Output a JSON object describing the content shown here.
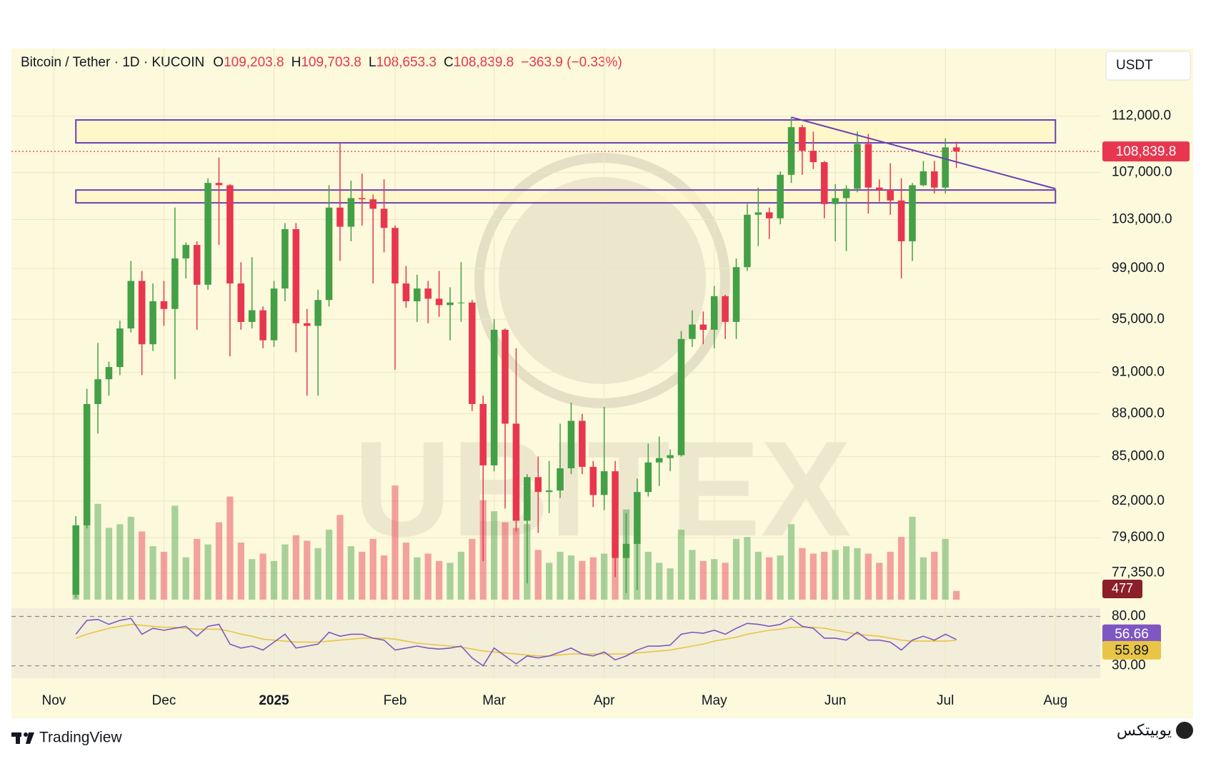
{
  "chart_data": {
    "type": "candlestick",
    "title": "Bitcoin / Tether · 1D · KUCOIN",
    "header_values": [
      {
        "label": "O",
        "text": "109,203.8"
      },
      {
        "label": "H",
        "text": "109,703.8"
      },
      {
        "label": "L",
        "text": "108,653.3"
      },
      {
        "label": "C",
        "text": "108,839.8"
      }
    ],
    "change": "−363.9 (−0.33%)",
    "currency": "USDT",
    "watermark_text": "UBITEX",
    "brand": "TradingView",
    "site_brand": "یوبیتکس",
    "log_scale": true,
    "grid": true,
    "up_color": "#43a047",
    "down_color": "#e8364f",
    "categories": [
      "Nov",
      null,
      null,
      null,
      null,
      null,
      null,
      null,
      null,
      null,
      "Dec",
      null,
      null,
      null,
      null,
      null,
      null,
      null,
      null,
      null,
      "2025",
      null,
      null,
      null,
      null,
      null,
      null,
      null,
      null,
      null,
      null,
      "Feb",
      null,
      null,
      null,
      null,
      null,
      null,
      null,
      null,
      "Mar",
      null,
      null,
      null,
      null,
      null,
      null,
      null,
      null,
      null,
      "Apr",
      null,
      null,
      null,
      null,
      null,
      null,
      null,
      null,
      null,
      "May",
      null,
      null,
      null,
      null,
      null,
      null,
      null,
      null,
      null,
      null,
      "Jun",
      null,
      null,
      null,
      null,
      null,
      null,
      null,
      null,
      null,
      "Jul",
      null,
      null,
      null,
      null,
      null,
      null,
      null,
      null,
      null,
      "Aug"
    ],
    "open": [
      null,
      null,
      76000,
      80400,
      88700,
      90500,
      91400,
      94300,
      98000,
      93100,
      96400,
      95800,
      99800,
      100900,
      97700,
      106100,
      105900,
      97800,
      94800,
      95700,
      93400,
      97400,
      102200,
      94700,
      94500,
      96500,
      104000,
      102400,
      104800,
      104700,
      103900,
      102300,
      97800,
      96400,
      97400,
      96600,
      96100,
      96300,
      96300,
      88700,
      84400,
      94200,
      87300,
      80700,
      83600,
      82600,
      82700,
      84200,
      87500,
      84300,
      82400,
      84000,
      78300,
      79200,
      82600,
      84600,
      84900,
      85100,
      93500,
      94600,
      94200,
      96800,
      94800,
      99100,
      103400,
      103600,
      103100,
      106800,
      111000,
      108900,
      107900,
      104300,
      104800,
      105600,
      109500,
      105700,
      105500,
      104600,
      101200,
      105900,
      107100,
      105700,
      109200,
      null,
      null,
      null,
      null,
      null,
      null,
      null,
      null,
      null
    ],
    "high": [
      null,
      null,
      81000,
      89800,
      93200,
      91800,
      94900,
      99600,
      98800,
      97800,
      98000,
      104000,
      101100,
      101200,
      106500,
      108300,
      106000,
      99500,
      99900,
      96000,
      98000,
      102700,
      102700,
      95800,
      97300,
      105900,
      109600,
      106300,
      106900,
      105100,
      106400,
      102500,
      99200,
      98500,
      98000,
      98800,
      97500,
      99500,
      96500,
      89300,
      95000,
      94300,
      92800,
      83800,
      85000,
      84700,
      87300,
      88800,
      88000,
      84700,
      88500,
      84700,
      81200,
      83500,
      85900,
      86400,
      85500,
      94100,
      95700,
      95600,
      97600,
      96900,
      99800,
      104300,
      105700,
      104000,
      107100,
      111900,
      111200,
      110600,
      108000,
      106000,
      105900,
      110600,
      110400,
      106400,
      107800,
      106500,
      106100,
      108000,
      108000,
      110000,
      109700,
      null,
      null,
      null,
      null,
      null,
      null,
      null,
      null,
      null
    ],
    "low": [
      null,
      null,
      75800,
      80200,
      86600,
      89300,
      90800,
      94000,
      90800,
      92600,
      94500,
      90500,
      98200,
      94200,
      97300,
      100900,
      92200,
      94200,
      94300,
      92800,
      92900,
      96400,
      92500,
      89300,
      89300,
      96000,
      99600,
      101200,
      102500,
      97800,
      100300,
      91200,
      95900,
      94800,
      94700,
      95200,
      93400,
      94800,
      88200,
      78100,
      84000,
      81500,
      80000,
      76700,
      79900,
      81200,
      82200,
      83800,
      83800,
      81600,
      81400,
      77100,
      76100,
      76300,
      82300,
      83000,
      84000,
      85000,
      92900,
      93100,
      92800,
      93500,
      93500,
      98800,
      100800,
      101400,
      102600,
      106100,
      106800,
      107300,
      103100,
      101200,
      100400,
      105300,
      103500,
      104500,
      103400,
      98200,
      99600,
      105800,
      105200,
      105200,
      107400,
      null,
      null,
      null,
      null,
      null,
      null,
      null,
      null,
      null
    ],
    "close": [
      null,
      null,
      80400,
      88700,
      90500,
      91400,
      94300,
      98000,
      93100,
      96400,
      95800,
      99800,
      100900,
      97700,
      106100,
      105900,
      97800,
      94800,
      95700,
      93400,
      97400,
      102200,
      94700,
      94500,
      96500,
      104000,
      102400,
      104800,
      104700,
      103900,
      102300,
      97800,
      96400,
      97400,
      96600,
      96100,
      96300,
      96300,
      88700,
      84400,
      94200,
      87300,
      80700,
      83600,
      82600,
      82700,
      84200,
      87500,
      84300,
      82400,
      84000,
      78300,
      79200,
      82600,
      84600,
      84900,
      85100,
      93500,
      94600,
      94200,
      96800,
      94800,
      99100,
      103400,
      103600,
      103100,
      106800,
      111000,
      108900,
      107900,
      104300,
      104800,
      105600,
      109500,
      105700,
      105500,
      104600,
      101200,
      105900,
      107100,
      105700,
      109200,
      108839.8,
      null,
      null,
      null,
      null,
      null,
      null,
      null,
      null,
      null
    ],
    "volume": [
      null,
      null,
      3600,
      6900,
      5200,
      3900,
      4100,
      4500,
      3700,
      2900,
      2600,
      5100,
      2300,
      3300,
      3000,
      4200,
      5600,
      3100,
      2200,
      2500,
      2100,
      3000,
      3500,
      3200,
      2800,
      3800,
      4600,
      2900,
      2600,
      3300,
      2400,
      6200,
      3100,
      2300,
      2500,
      2100,
      2000,
      2600,
      3300,
      5400,
      4800,
      4200,
      3900,
      4100,
      2700,
      2000,
      2600,
      2400,
      2100,
      2300,
      2500,
      3900,
      4900,
      4300,
      2600,
      2000,
      1700,
      3800,
      2700,
      2100,
      2200,
      2000,
      3300,
      3400,
      2600,
      2300,
      2400,
      4100,
      2800,
      2500,
      2600,
      2700,
      2900,
      2800,
      2500,
      2000,
      2600,
      3400,
      4500,
      2300,
      2600,
      3300,
      477,
      null,
      null,
      null,
      null,
      null,
      null,
      null,
      null,
      null
    ],
    "ylim": [
      75700,
      118300
    ],
    "yticks": [
      {
        "value": 77350,
        "label": "77,350.0"
      },
      {
        "value": 79600,
        "label": "79,600.0"
      },
      {
        "value": 82000,
        "label": "82,000.0"
      },
      {
        "value": 85000,
        "label": "85,000.0"
      },
      {
        "value": 88000,
        "label": "88,000.0"
      },
      {
        "value": 91000,
        "label": "91,000.0"
      },
      {
        "value": 95000,
        "label": "95,000.0"
      },
      {
        "value": 99000,
        "label": "99,000.0"
      },
      {
        "value": 103000,
        "label": "103,000.0"
      },
      {
        "value": 107000,
        "label": "107,000.0"
      },
      {
        "value": 112000,
        "label": "112,000.0"
      }
    ],
    "last_price": {
      "value": 108839.8,
      "label": "108,839.8"
    },
    "zones": [
      [
        109600,
        111650
      ],
      [
        104400,
        105490
      ]
    ],
    "trendline": [
      111900,
      105600
    ],
    "rsi": {
      "color": "#7e57c2",
      "ma_color": "#e8c547",
      "ylim": [
        17.5,
        88.3
      ],
      "yticks": [
        {
          "value": 80,
          "label": "80.00"
        },
        {
          "value": 30,
          "label": "30.00"
        }
      ],
      "values": [
        null,
        null,
        62,
        76,
        77,
        72,
        76,
        78,
        62,
        68,
        66,
        68,
        70,
        60,
        70,
        72,
        52,
        48,
        50,
        46,
        54,
        62,
        48,
        50,
        52,
        64,
        60,
        62,
        62,
        58,
        56,
        46,
        48,
        50,
        48,
        47,
        48,
        50,
        38,
        30,
        48,
        40,
        32,
        40,
        38,
        40,
        44,
        48,
        42,
        40,
        44,
        36,
        40,
        46,
        50,
        50,
        51,
        62,
        64,
        63,
        66,
        62,
        68,
        73,
        72,
        70,
        72,
        78,
        70,
        68,
        58,
        58,
        56,
        64,
        56,
        56,
        54,
        46,
        56,
        60,
        56,
        62,
        56.66,
        null,
        null,
        null,
        null,
        null,
        null,
        null,
        null,
        null
      ],
      "ma_values": [
        null,
        null,
        58,
        62,
        65,
        68,
        70,
        72,
        71,
        70,
        69,
        69,
        68,
        67,
        67,
        67,
        65,
        62,
        60,
        57,
        56,
        55,
        54,
        54,
        54,
        55,
        56,
        57,
        58,
        58,
        58,
        57,
        55,
        53,
        52,
        51,
        50,
        49,
        47,
        45,
        44,
        43,
        42,
        41,
        40,
        40,
        41,
        42,
        42,
        42,
        42,
        42,
        42,
        43,
        44,
        45,
        46,
        48,
        50,
        52,
        55,
        57,
        59,
        62,
        64,
        66,
        67,
        69,
        69,
        69,
        68,
        66,
        64,
        62,
        61,
        60,
        58,
        56,
        55,
        55,
        55,
        55,
        55.89,
        null,
        null,
        null,
        null,
        null,
        null,
        null,
        null,
        null
      ]
    }
  }
}
